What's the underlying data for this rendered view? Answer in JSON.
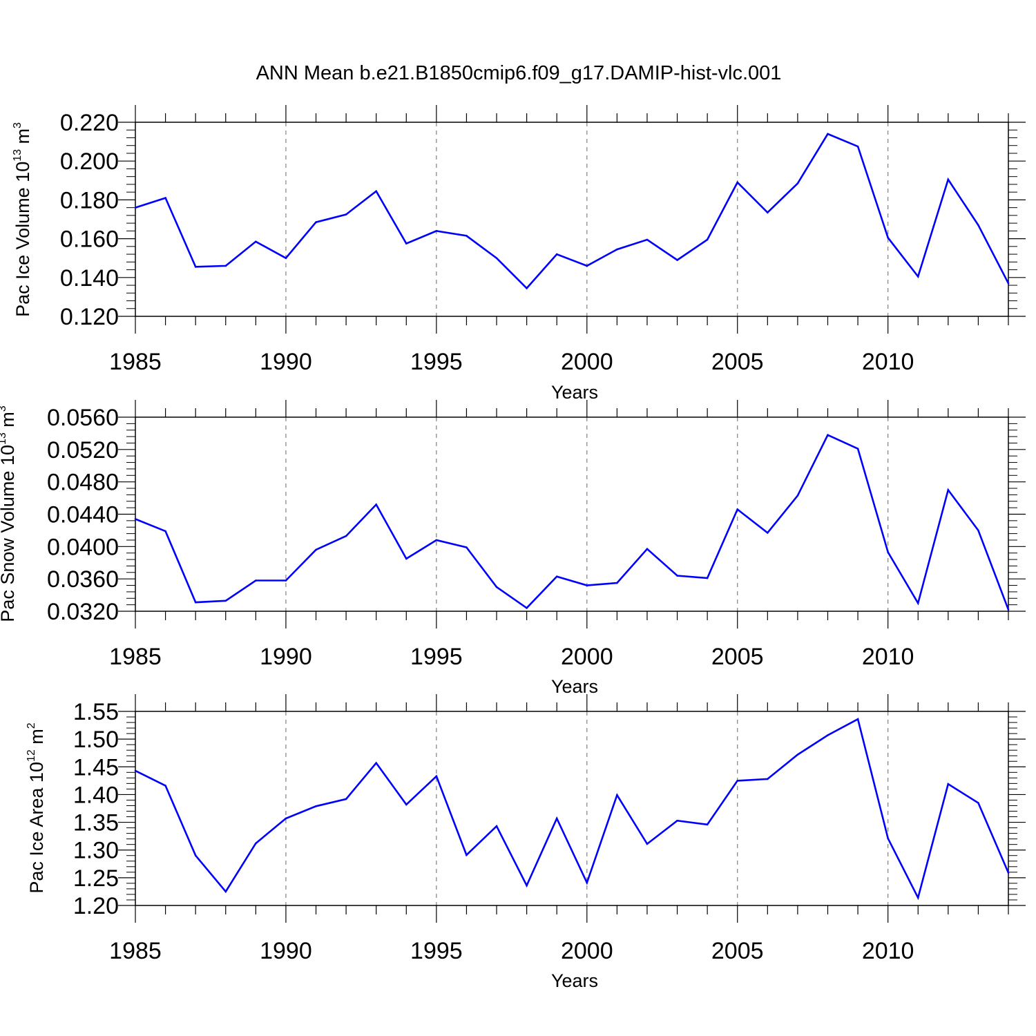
{
  "title": "ANN Mean b.e21.B1850cmip6.f09_g17.DAMIP-hist-vlc.001",
  "colors": {
    "line": "#0000ff",
    "axis": "#000000",
    "grid": "#808080"
  },
  "chart_data": [
    {
      "type": "line",
      "ylabel": {
        "main": "Pac Ice Volume 10",
        "exp": "13",
        "unit": " m",
        "unit_exp": "3"
      },
      "xlabel": "Years",
      "xlim": [
        1985,
        2014
      ],
      "ylim": [
        0.12,
        0.22
      ],
      "yticks": [
        0.12,
        0.14,
        0.16,
        0.18,
        0.2,
        0.22
      ],
      "ytick_labels": [
        "0.120",
        "0.140",
        "0.160",
        "0.180",
        "0.200",
        "0.220"
      ],
      "xticks": [
        1985,
        1990,
        1995,
        2000,
        2005,
        2010
      ],
      "xtick_labels": [
        "1985",
        "1990",
        "1995",
        "2000",
        "2005",
        "2010"
      ],
      "grid": "vertical-dashed",
      "x": [
        1985,
        1986,
        1987,
        1988,
        1989,
        1990,
        1991,
        1992,
        1993,
        1994,
        1995,
        1996,
        1997,
        1998,
        1999,
        2000,
        2001,
        2002,
        2003,
        2004,
        2005,
        2006,
        2007,
        2008,
        2009,
        2010,
        2011,
        2012,
        2013,
        2014
      ],
      "values": [
        0.176,
        0.181,
        0.1455,
        0.146,
        0.1585,
        0.15,
        0.1685,
        0.1725,
        0.1845,
        0.1575,
        0.164,
        0.1615,
        0.15,
        0.1345,
        0.152,
        0.146,
        0.1545,
        0.1595,
        0.149,
        0.1595,
        0.189,
        0.1735,
        0.1885,
        0.214,
        0.2075,
        0.1605,
        0.1405,
        0.1905,
        0.167,
        0.137
      ]
    },
    {
      "type": "line",
      "ylabel": {
        "main": "Pac Snow Volume 10",
        "exp": "13",
        "unit": " m",
        "unit_exp": "3"
      },
      "xlabel": "Years",
      "xlim": [
        1985,
        2014
      ],
      "ylim": [
        0.032,
        0.056
      ],
      "yticks": [
        0.032,
        0.036,
        0.04,
        0.044,
        0.048,
        0.052,
        0.056
      ],
      "ytick_labels": [
        "0.0320",
        "0.0360",
        "0.0400",
        "0.0440",
        "0.0480",
        "0.0520",
        "0.0560"
      ],
      "xticks": [
        1985,
        1990,
        1995,
        2000,
        2005,
        2010
      ],
      "xtick_labels": [
        "1985",
        "1990",
        "1995",
        "2000",
        "2005",
        "2010"
      ],
      "grid": "vertical-dashed",
      "x": [
        1985,
        1986,
        1987,
        1988,
        1989,
        1990,
        1991,
        1992,
        1993,
        1994,
        1995,
        1996,
        1997,
        1998,
        1999,
        2000,
        2001,
        2002,
        2003,
        2004,
        2005,
        2006,
        2007,
        2008,
        2009,
        2010,
        2011,
        2012,
        2013,
        2014
      ],
      "values": [
        0.0434,
        0.0419,
        0.0331,
        0.0333,
        0.0358,
        0.0358,
        0.0396,
        0.0413,
        0.0452,
        0.0385,
        0.0408,
        0.0399,
        0.035,
        0.0324,
        0.0363,
        0.0352,
        0.0355,
        0.0397,
        0.0364,
        0.0361,
        0.0446,
        0.0417,
        0.0463,
        0.0538,
        0.0521,
        0.0393,
        0.033,
        0.047,
        0.042,
        0.0322
      ]
    },
    {
      "type": "line",
      "ylabel": {
        "main": "Pac Ice Area 10",
        "exp": "12",
        "unit": " m",
        "unit_exp": "2"
      },
      "xlabel": "Years",
      "xlim": [
        1985,
        2014
      ],
      "ylim": [
        1.2,
        1.55
      ],
      "yticks": [
        1.2,
        1.25,
        1.3,
        1.35,
        1.4,
        1.45,
        1.5,
        1.55
      ],
      "ytick_labels": [
        "1.20",
        "1.25",
        "1.30",
        "1.35",
        "1.40",
        "1.45",
        "1.50",
        "1.55"
      ],
      "xticks": [
        1985,
        1990,
        1995,
        2000,
        2005,
        2010
      ],
      "xtick_labels": [
        "1985",
        "1990",
        "1995",
        "2000",
        "2005",
        "2010"
      ],
      "grid": "vertical-dashed",
      "x": [
        1985,
        1986,
        1987,
        1988,
        1989,
        1990,
        1991,
        1992,
        1993,
        1994,
        1995,
        1996,
        1997,
        1998,
        1999,
        2000,
        2001,
        2002,
        2003,
        2004,
        2005,
        2006,
        2007,
        2008,
        2009,
        2010,
        2011,
        2012,
        2013,
        2014
      ],
      "values": [
        1.443,
        1.416,
        1.29,
        1.225,
        1.312,
        1.357,
        1.379,
        1.392,
        1.457,
        1.382,
        1.433,
        1.291,
        1.343,
        1.236,
        1.357,
        1.241,
        1.399,
        1.311,
        1.353,
        1.346,
        1.425,
        1.428,
        1.472,
        1.507,
        1.536,
        1.321,
        1.214,
        1.419,
        1.385,
        1.259
      ]
    }
  ]
}
